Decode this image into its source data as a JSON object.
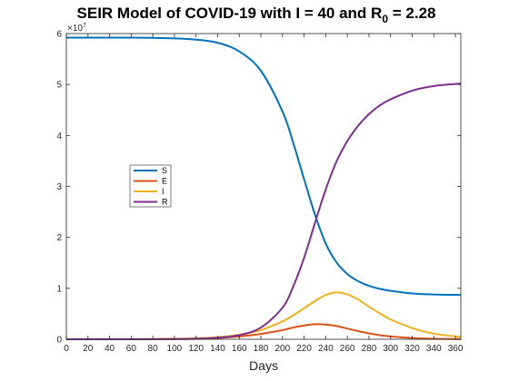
{
  "chart_data": {
    "type": "line",
    "title": {
      "main": "SEIR Model of COVID-19 with I = 40 and R",
      "subscript": "0",
      "suffix": " = 2.28"
    },
    "xlabel": "Days",
    "ylabel": "",
    "xlim": [
      0,
      365
    ],
    "ylim": [
      0,
      60000000
    ],
    "y_exponent_label": {
      "base": "×10",
      "power": "7"
    },
    "x_ticks": [
      0,
      20,
      40,
      60,
      80,
      100,
      120,
      140,
      160,
      180,
      200,
      220,
      240,
      260,
      280,
      300,
      320,
      340,
      360
    ],
    "x_tick_labels": [
      "0",
      "20",
      "40",
      "60",
      "80",
      "100",
      "120",
      "140",
      "160",
      "180",
      "200",
      "220",
      "240",
      "260",
      "280",
      "300",
      "320",
      "340",
      "360"
    ],
    "y_ticks": [
      0,
      10000000,
      20000000,
      30000000,
      40000000,
      50000000,
      60000000
    ],
    "y_tick_labels": [
      "0",
      "1",
      "2",
      "3",
      "4",
      "5",
      "6"
    ],
    "grid": false,
    "legend": {
      "placement": "left-middle",
      "entries": [
        "S",
        "E",
        "I",
        "R"
      ]
    },
    "x": [
      0,
      20,
      40,
      60,
      80,
      100,
      120,
      140,
      160,
      180,
      200,
      210,
      220,
      230,
      240,
      250,
      260,
      270,
      280,
      290,
      300,
      320,
      340,
      365
    ],
    "series": [
      {
        "name": "S",
        "color": "#0072BD",
        "values": [
          59200000,
          59200000,
          59200000,
          59200000,
          59150000,
          59050000,
          58800000,
          58200000,
          56500000,
          52700000,
          44700000,
          38500000,
          31400000,
          24500000,
          18800000,
          15100000,
          12800000,
          11400000,
          10500000,
          9900000,
          9500000,
          9000000,
          8800000,
          8700000
        ]
      },
      {
        "name": "E",
        "color": "#D95319",
        "values": [
          0,
          0,
          0,
          0,
          20000,
          50000,
          100000,
          250000,
          550000,
          1050000,
          1800000,
          2300000,
          2700000,
          2950000,
          2900000,
          2600000,
          2100000,
          1600000,
          1150000,
          800000,
          550000,
          250000,
          100000,
          30000
        ]
      },
      {
        "name": "I",
        "color": "#EDB120",
        "values": [
          0,
          0,
          0,
          0,
          30000,
          80000,
          180000,
          400000,
          900000,
          1800000,
          3500000,
          4700000,
          6100000,
          7500000,
          8700000,
          9200000,
          8800000,
          7800000,
          6400000,
          5100000,
          3900000,
          2200000,
          1100000,
          450000
        ]
      },
      {
        "name": "R",
        "color": "#7E2F8E",
        "values": [
          0,
          0,
          0,
          0,
          20000,
          50000,
          120000,
          300000,
          800000,
          2300000,
          6200000,
          10400000,
          16000000,
          22800000,
          29400000,
          34900000,
          38900000,
          41900000,
          44200000,
          45900000,
          47100000,
          48800000,
          49700000,
          50200000
        ]
      }
    ]
  }
}
